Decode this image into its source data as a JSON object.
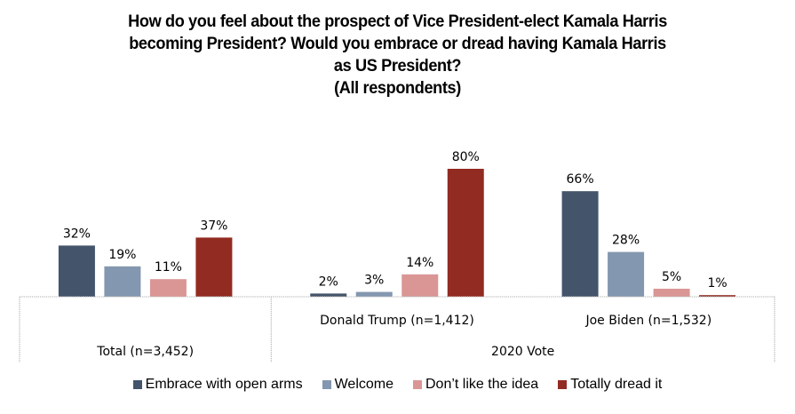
{
  "chart_data": {
    "type": "bar",
    "title": "How do you feel about the prospect of Vice President-elect Kamala Harris becoming President? Would you embrace or dread having Kamala Harris as US President? (All respondents)",
    "title_lines": [
      "How do you feel about the prospect of Vice President-elect Kamala Harris",
      "becoming President? Would you embrace or dread having Kamala Harris",
      "as US President?",
      "(All respondents)"
    ],
    "categories": [
      "Total (n=3,452)",
      "Donald Trump (n=1,412)",
      "Joe Biden (n=1,532)"
    ],
    "category_groups": [
      {
        "label": "",
        "members": [
          "Total (n=3,452)"
        ]
      },
      {
        "label": "2020 Vote",
        "members": [
          "Donald Trump (n=1,412)",
          "Joe Biden (n=1,532)"
        ]
      }
    ],
    "series": [
      {
        "name": "Embrace with open arms",
        "color": "#44546A",
        "values": [
          32,
          2,
          66
        ]
      },
      {
        "name": "Welcome",
        "color": "#8497B0",
        "values": [
          19,
          3,
          28
        ]
      },
      {
        "name": "Don’t like the idea",
        "color": "#DA9694",
        "values": [
          11,
          14,
          5
        ]
      },
      {
        "name": "Totally dread it",
        "color": "#922B21",
        "values": [
          37,
          80,
          1
        ]
      }
    ],
    "value_suffix": "%",
    "xlabel": "",
    "ylabel": "",
    "ylim": [
      0,
      80
    ],
    "grid": false,
    "legend_position": "bottom",
    "data_labels": true
  }
}
